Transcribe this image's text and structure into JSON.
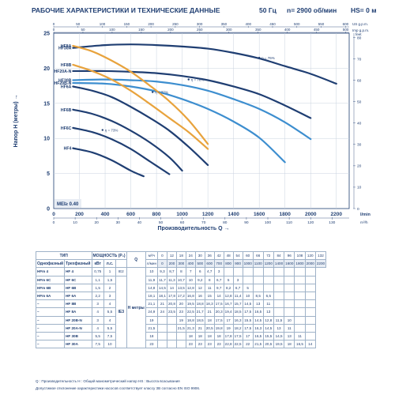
{
  "header": {
    "title": "РАБОЧИЕ ХАРАКТЕРИСТИКИ И ТЕХНИЧЕСКИЕ ДАННЫЕ",
    "freq": "50 Гц",
    "speed": "n= 2900 об/мин",
    "hs": "HS= 0 м"
  },
  "chart_data": {
    "type": "line",
    "xlabel": "Производительность Q",
    "ylabel": "Напор H (метры)",
    "x_unit": "l/min",
    "x2_unit": "m³/h",
    "y2_units": [
      "US g.p.m.",
      "Imp g.p.m.",
      "feet"
    ],
    "xlim": [
      0,
      2300
    ],
    "ylim": [
      0,
      25
    ],
    "x_ticks": [
      0,
      200,
      400,
      600,
      800,
      1000,
      1200,
      1400,
      1600,
      1800,
      2000,
      2200
    ],
    "y_ticks": [
      0,
      5,
      10,
      15,
      20,
      25
    ],
    "m3h_ticks": [
      0,
      10,
      20,
      30,
      40,
      50,
      60,
      70,
      80,
      90,
      100,
      110,
      120,
      130
    ],
    "feet_ticks": [
      0,
      10,
      20,
      30,
      40,
      50,
      60,
      70,
      80
    ],
    "us_gpm_ticks": [
      0,
      50,
      100,
      150,
      200,
      250,
      300,
      350,
      400,
      450,
      500,
      550,
      600
    ],
    "imp_gpm_ticks": [
      0,
      50,
      100,
      150,
      200,
      250,
      300,
      350,
      400,
      450,
      500
    ],
    "efficiency_labels": [
      "η = 76%",
      "η = 78%",
      "η = 77%",
      "η = 73%"
    ],
    "mei": "MEI≥ 0.40",
    "series": [
      {
        "name": "HF30A",
        "color": "#1f3e72",
        "x": [
          150,
          400,
          600,
          800,
          1000,
          1200,
          1400,
          1600,
          1800,
          2000,
          2200
        ],
        "y": [
          22.9,
          23.3,
          23.4,
          23.3,
          23.1,
          22.8,
          22.2,
          21.4,
          20.3,
          19.2,
          17.8
        ]
      },
      {
        "name": "HF20A-N",
        "color": "#1f3e72",
        "x": [
          150,
          400,
          600,
          800,
          1000,
          1200,
          1400,
          1600,
          1800,
          2000
        ],
        "y": [
          19.6,
          19.6,
          19.5,
          19.3,
          18.9,
          18.3,
          17.4,
          16.3,
          14.7,
          12.9
        ]
      },
      {
        "name": "HF30B",
        "color": "#3d8ecf",
        "x": [
          150,
          400,
          600,
          800,
          1000,
          1200,
          1400,
          1600,
          1800,
          2000
        ],
        "y": [
          18.3,
          18.4,
          18.3,
          18.1,
          17.6,
          16.8,
          15.6,
          14.2,
          12.3,
          9.9
        ]
      },
      {
        "name": "HF20B-N",
        "color": "#3d8ecf",
        "x": [
          150,
          400,
          600,
          800,
          1000,
          1200,
          1400,
          1600,
          1800
        ],
        "y": [
          17.9,
          17.8,
          17.4,
          16.7,
          15.6,
          14.2,
          12.4,
          10.1,
          6.6
        ]
      },
      {
        "name": "HF8A",
        "color": "#e8a33d",
        "x": [
          150,
          300,
          450,
          600,
          750,
          900,
          1050,
          1200
        ],
        "y": [
          23.2,
          22.4,
          21.1,
          19.5,
          17.5,
          15.3,
          12.6,
          9.2
        ]
      },
      {
        "name": "HF8B",
        "color": "#e8a33d",
        "x": [
          150,
          300,
          450,
          600,
          750,
          900,
          1050,
          1200
        ],
        "y": [
          20.5,
          19.6,
          18.4,
          16.8,
          14.9,
          12.9,
          10.9,
          8.5
        ]
      },
      {
        "name": "HF6A",
        "color": "#1f3e72",
        "x": [
          150,
          300,
          450,
          600,
          750,
          900,
          1050,
          1200
        ],
        "y": [
          17.4,
          16.8,
          15.9,
          14.5,
          12.9,
          11.1,
          8.8,
          6.2
        ]
      },
      {
        "name": "HF6B",
        "color": "#1f3e72",
        "x": [
          150,
          300,
          450,
          600,
          750,
          900,
          1000
        ],
        "y": [
          14.1,
          13.5,
          12.5,
          11.1,
          9.4,
          7.3,
          5.4
        ]
      },
      {
        "name": "HF6C",
        "color": "#1f3e72",
        "x": [
          150,
          300,
          450,
          600,
          750,
          900
        ],
        "y": [
          11.5,
          10.9,
          9.9,
          8.5,
          6.7,
          4.9
        ]
      },
      {
        "name": "HF4",
        "color": "#1f3e72",
        "x": [
          150,
          300,
          450,
          600,
          700
        ],
        "y": [
          8.6,
          8.0,
          6.9,
          5.4,
          4.6
        ]
      }
    ]
  },
  "table": {
    "h_type": "ТИП",
    "h_power": "МОЩНОСТЬ (P₂)",
    "h_q": "Q",
    "h_h": "H",
    "h_meters": "метры",
    "sub_single": "Однофазный",
    "sub_three": "Трехфазный",
    "sub_kw": "кВт",
    "sub_hp": "л.с.",
    "q_units": [
      "м³/ч",
      "л/мин"
    ],
    "q_m3h": [
      "0",
      "12",
      "18",
      "24",
      "30",
      "36",
      "42",
      "48",
      "54",
      "60",
      "66",
      "72",
      "84",
      "96",
      "108",
      "120",
      "132"
    ],
    "q_lmin": [
      "0",
      "200",
      "300",
      "400",
      "500",
      "600",
      "700",
      "800",
      "900",
      "1000",
      "1100",
      "1200",
      "1400",
      "1600",
      "1800",
      "2000",
      "2200"
    ],
    "ie": [
      "IE2",
      "IE3"
    ],
    "rows": [
      {
        "mono": "HFm 4",
        "tri": "HF 4",
        "kw": "0,75",
        "hp": "1",
        "h": [
          "10",
          "9,3",
          "8,7",
          "8",
          "7",
          "6",
          "4,7",
          "3",
          "",
          "",
          "",
          "",
          "",
          "",
          "",
          "",
          ""
        ]
      },
      {
        "mono": "HFm 6C",
        "tri": "HF 6C",
        "kw": "1,1",
        "hp": "1,5",
        "h": [
          "11,9",
          "11,7",
          "11,3",
          "10,7",
          "10",
          "9,2",
          "8",
          "6,7",
          "5",
          "3",
          "",
          "",
          "",
          "",
          "",
          "",
          ""
        ]
      },
      {
        "mono": "HFm 6B",
        "tri": "HF 6B",
        "kw": "1,5",
        "hp": "2",
        "h": [
          "14,8",
          "14,5",
          "14",
          "13,5",
          "12,8",
          "12",
          "11",
          "9,7",
          "8,2",
          "6,7",
          "5",
          "",
          "",
          "",
          "",
          "",
          ""
        ]
      },
      {
        "mono": "HFm 6A",
        "tri": "HF 6A",
        "kw": "2,2",
        "hp": "3",
        "h": [
          "18,1",
          "18,1",
          "17,8",
          "17,2",
          "16,8",
          "16",
          "15",
          "14",
          "12,8",
          "11,4",
          "10",
          "8,5",
          "6,5",
          "",
          "",
          "",
          ""
        ]
      },
      {
        "mono": "–",
        "tri": "HF 8B",
        "kw": "3",
        "hp": "4",
        "h": [
          "21,1",
          "21",
          "20,8",
          "20",
          "19,5",
          "18,8",
          "18,3",
          "17,5",
          "16,7",
          "15,7",
          "14,5",
          "13",
          "11",
          "",
          "",
          "",
          ""
        ]
      },
      {
        "mono": "–",
        "tri": "HF 8A",
        "kw": "4",
        "hp": "5,5",
        "h": [
          "24,9",
          "24",
          "23,5",
          "23",
          "22,5",
          "21,7",
          "21",
          "20,3",
          "19,4",
          "18,5",
          "17,5",
          "16,5",
          "13",
          "",
          "",
          "",
          ""
        ]
      },
      {
        "mono": "–",
        "tri": "HF 20B-N",
        "kw": "3",
        "hp": "4",
        "h": [
          "19",
          "",
          "",
          "19",
          "18,8",
          "18,5",
          "18",
          "17,5",
          "17",
          "16,3",
          "15,5",
          "14,5",
          "12,8",
          "11,5",
          "10",
          "",
          ""
        ]
      },
      {
        "mono": "–",
        "tri": "HF 20A-N",
        "kw": "4",
        "hp": "5,5",
        "h": [
          "21,5",
          "",
          "",
          "21,5",
          "21,3",
          "21",
          "20,5",
          "19,8",
          "19",
          "18,2",
          "17,5",
          "16,3",
          "14,5",
          "13",
          "11",
          "",
          ""
        ]
      },
      {
        "mono": "–",
        "tri": "HF 30B",
        "kw": "5,5",
        "hp": "7,5",
        "h": [
          "18",
          "",
          "",
          "",
          "18",
          "18",
          "18",
          "18",
          "17,8",
          "17,5",
          "17",
          "16,5",
          "15,5",
          "14,5",
          "13",
          "11",
          ""
        ]
      },
      {
        "mono": "–",
        "tri": "HF 30A",
        "kw": "7,5",
        "hp": "10",
        "h": [
          "23",
          "",
          "",
          "",
          "23",
          "23",
          "23",
          "23",
          "22,8",
          "22,5",
          "22",
          "21,5",
          "20,5",
          "19,5",
          "18",
          "16,5",
          "14"
        ]
      }
    ]
  },
  "footer": {
    "line1": "Q : Производительность  H : Общий манометрический напор  HS : Высота всасывания",
    "line2": "Допустимое отклонение характеристики насосов соответствует классу 3B согласно EN ISO 9906."
  }
}
